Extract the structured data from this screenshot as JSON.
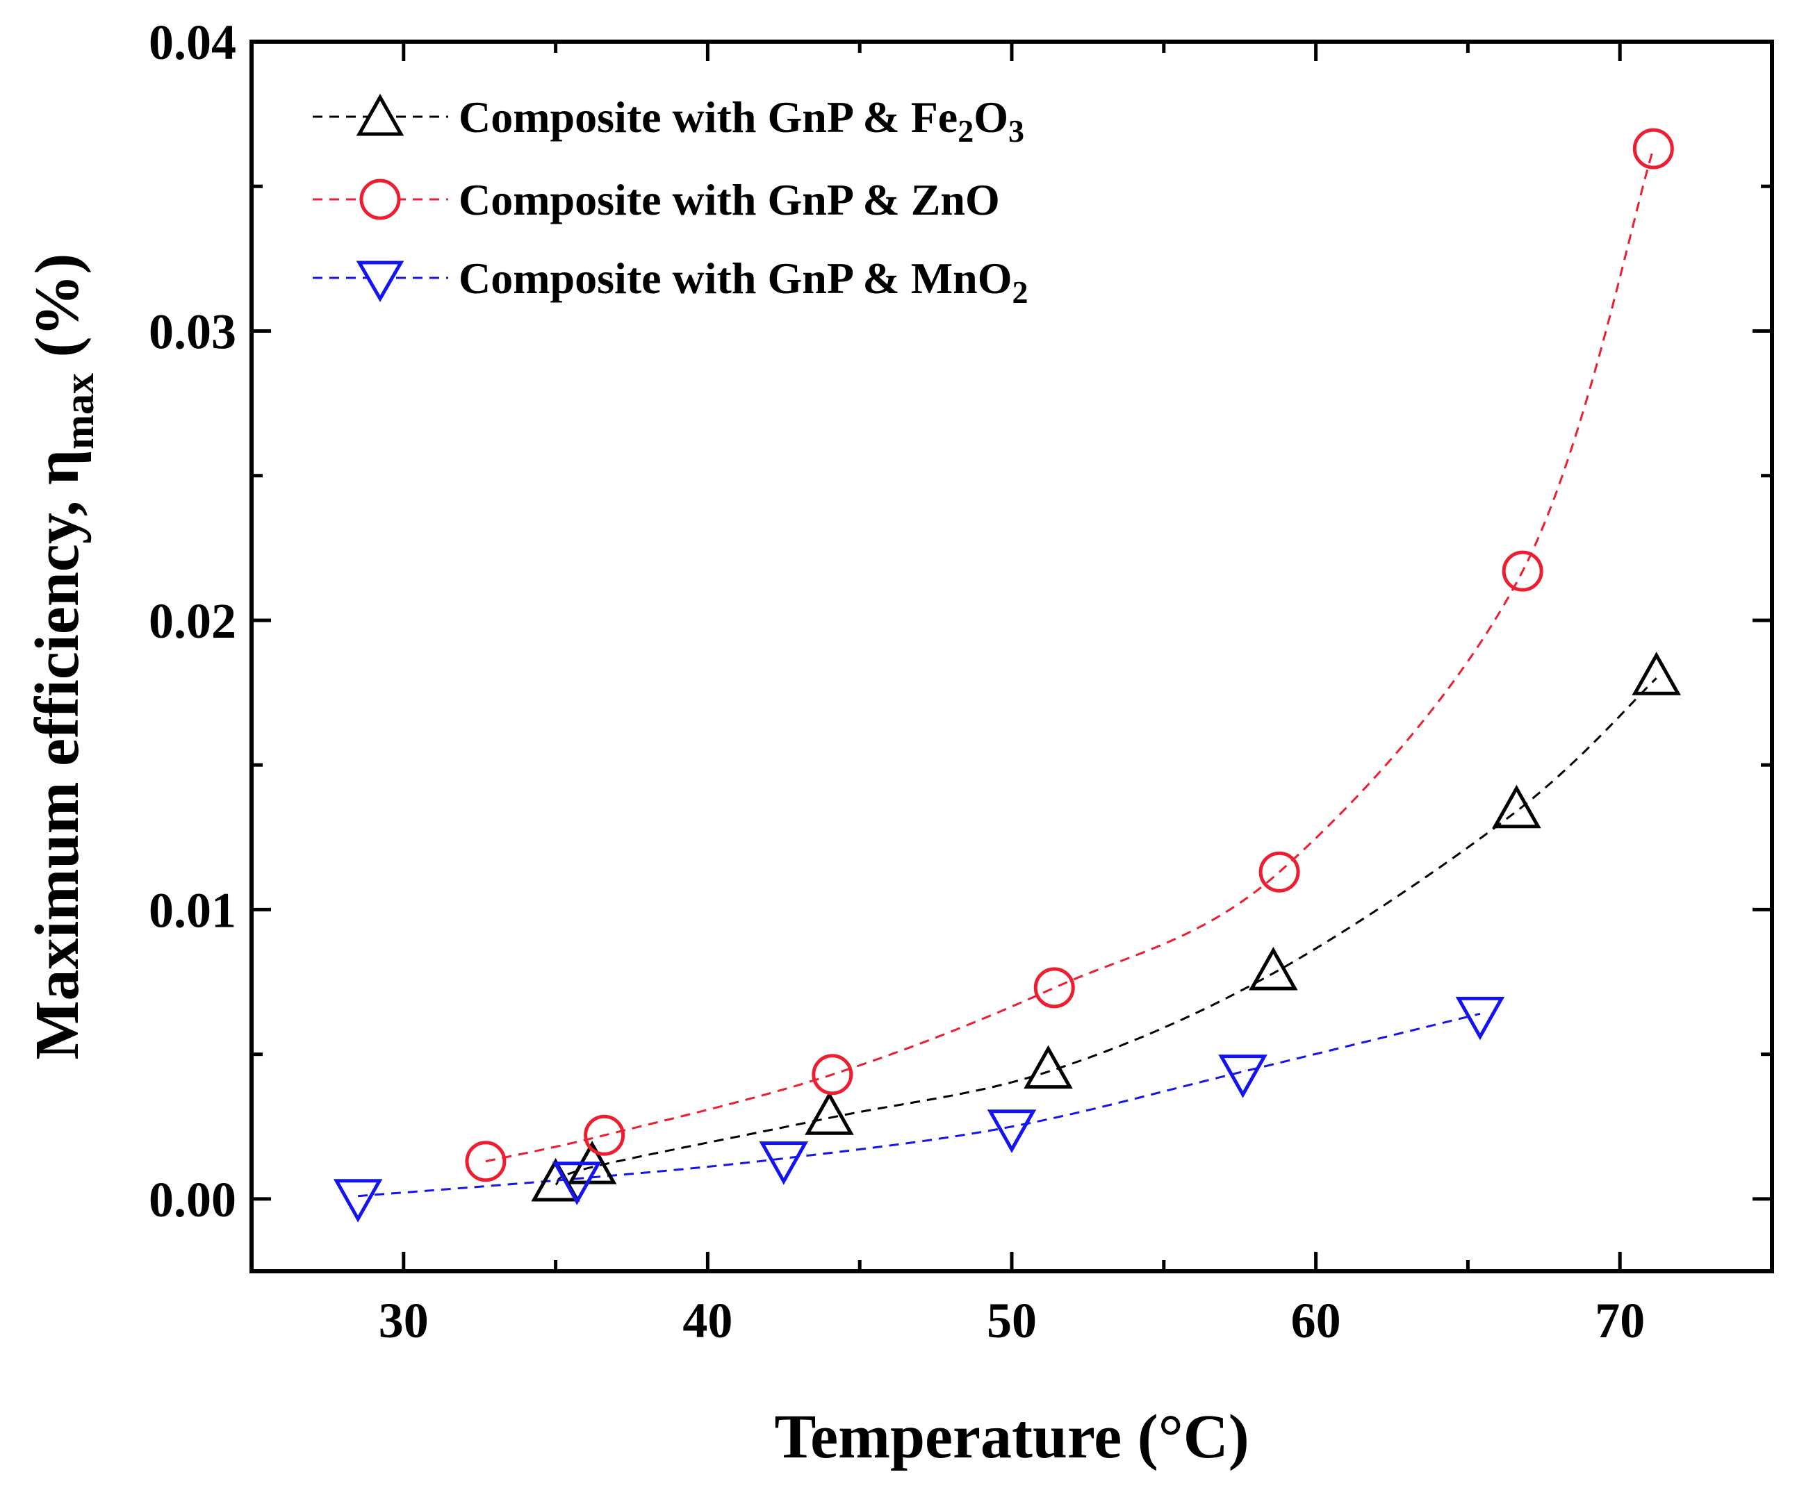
{
  "chart_data": {
    "type": "line",
    "title": "",
    "xlabel": "Temperature (°C)",
    "ylabel_main": "Maximum efficiency, η",
    "ylabel_sub": "max",
    "ylabel_unit": " (%)",
    "xlim": [
      25,
      75
    ],
    "ylim": [
      -0.0025,
      0.04
    ],
    "xticks": [
      30,
      40,
      50,
      60,
      70
    ],
    "xtick_labels": [
      "30",
      "40",
      "50",
      "60",
      "70"
    ],
    "yticks": [
      0.0,
      0.01,
      0.02,
      0.03,
      0.04
    ],
    "ytick_labels": [
      "0.00",
      "0.01",
      "0.02",
      "0.03",
      "0.04"
    ],
    "grid": false,
    "legend_position": "top-left",
    "series": [
      {
        "name": "Composite with GnP & Fe2O3",
        "legend_main": "Composite with GnP & Fe",
        "legend_sub1": "2",
        "legend_mid": "O",
        "legend_sub2": "3",
        "color": "#000000",
        "marker": "triangle-up",
        "x": [
          35.0,
          36.2,
          44.0,
          51.2,
          58.6,
          66.6,
          71.2
        ],
        "y": [
          0.0005,
          0.0011,
          0.0028,
          0.0044,
          0.0078,
          0.0134,
          0.018
        ]
      },
      {
        "name": "Composite with GnP & ZnO",
        "legend_main": "Composite with GnP & ZnO",
        "color": "#ee1d2f",
        "marker": "circle",
        "x": [
          32.7,
          36.6,
          44.1,
          51.4,
          58.8,
          66.8,
          71.1
        ],
        "y": [
          0.0013,
          0.0022,
          0.0043,
          0.0073,
          0.0113,
          0.0217,
          0.0363
        ]
      },
      {
        "name": "Composite with GnP & MnO2",
        "legend_main": "Composite with GnP & MnO",
        "legend_sub1": "2",
        "color": "#1414f0",
        "marker": "triangle-down",
        "x": [
          28.5,
          35.7,
          42.5,
          50.0,
          57.6,
          65.4
        ],
        "y": [
          0.0001,
          0.0007,
          0.0014,
          0.0025,
          0.0044,
          0.0064
        ]
      }
    ]
  }
}
